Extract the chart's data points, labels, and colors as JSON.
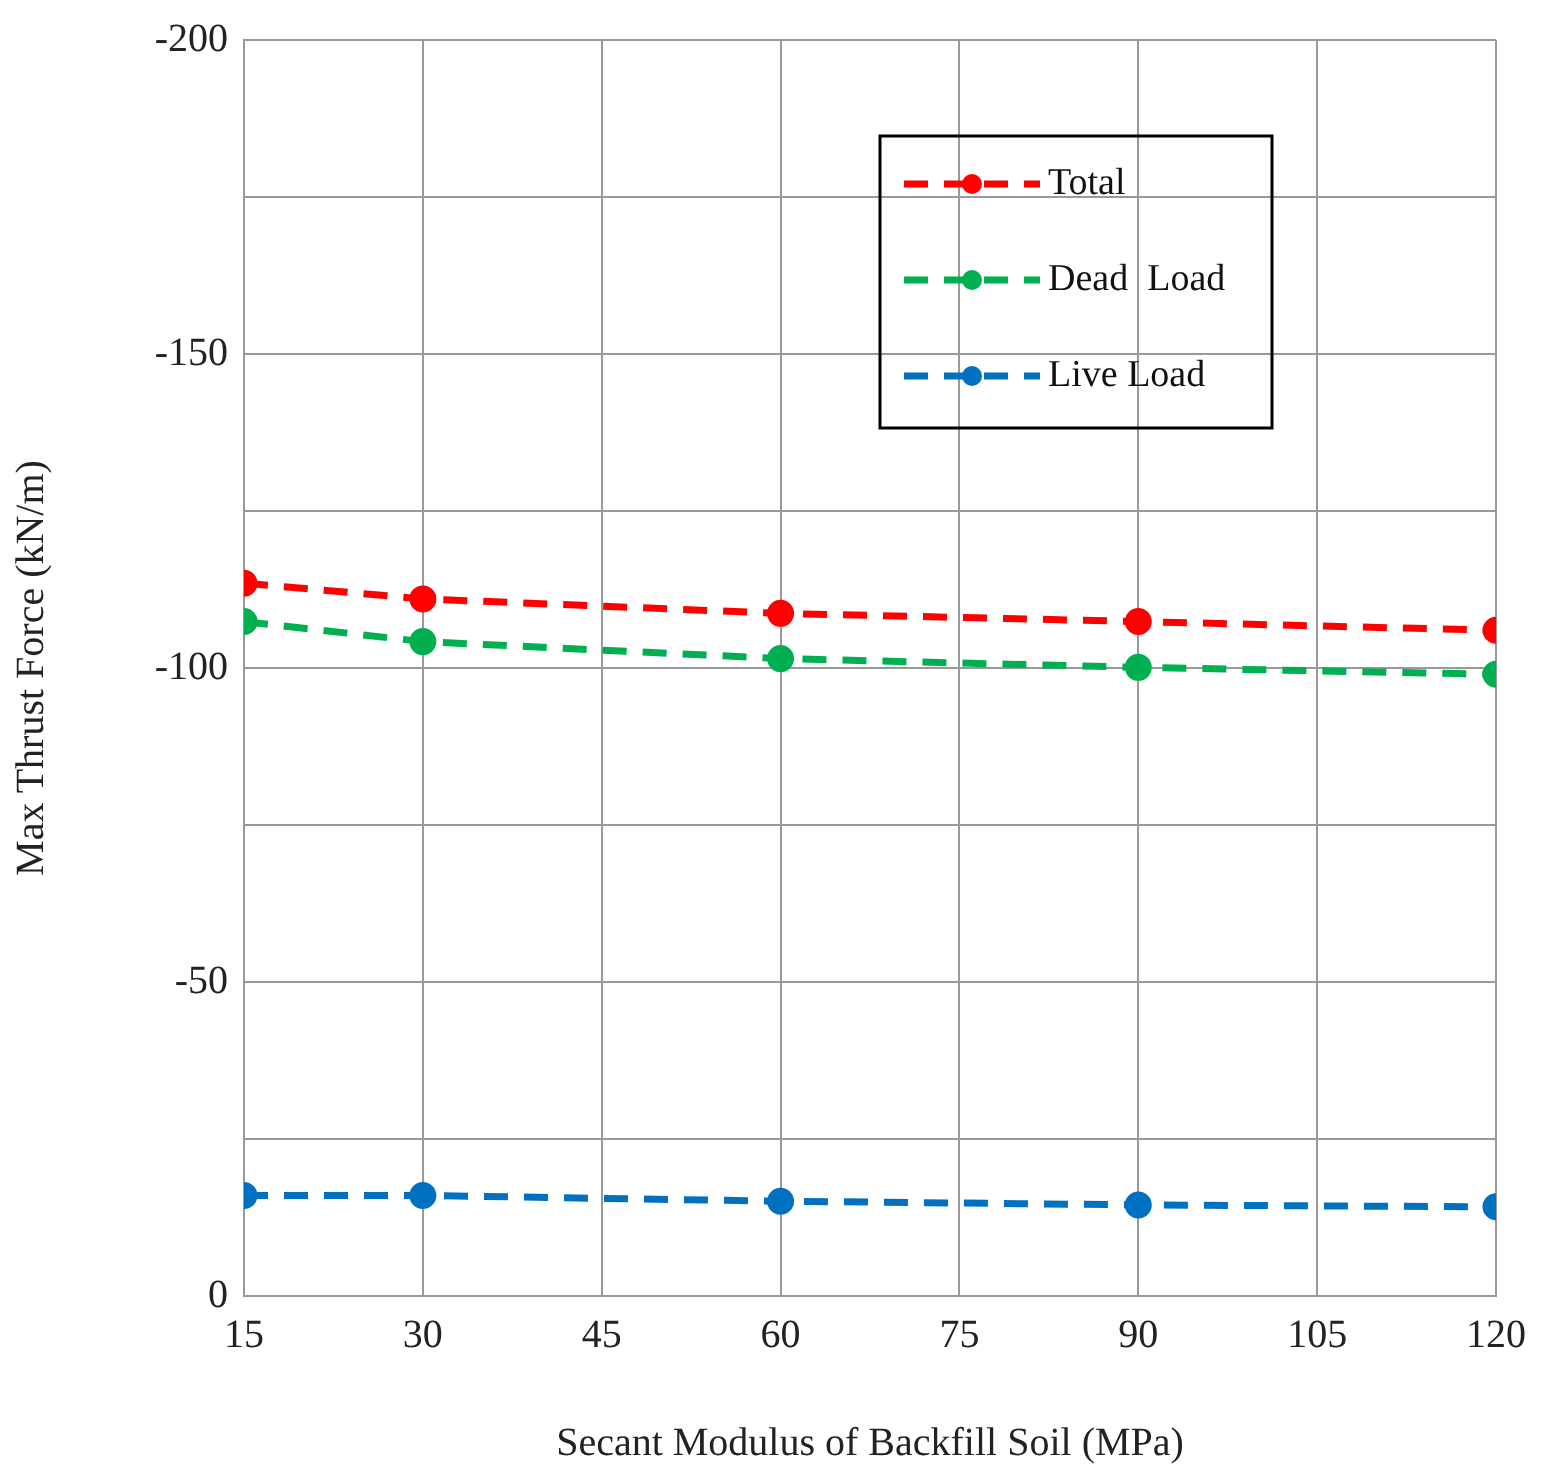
{
  "chart_data": {
    "type": "line",
    "xlabel": "Secant Modulus of Backfill Soil (MPa)",
    "ylabel": "Max Thrust Force (kN/m)",
    "x": [
      15,
      30,
      60,
      90,
      120
    ],
    "series": [
      {
        "name": "Total",
        "color": "#ff0000",
        "values": [
          -113.5,
          -111,
          -108.7,
          -107.4,
          -106
        ]
      },
      {
        "name": "Dead  Load",
        "color": "#00b050",
        "values": [
          -107.4,
          -104.2,
          -101.5,
          -100.1,
          -99
        ]
      },
      {
        "name": "Live Load",
        "color": "#0070c0",
        "values": [
          -16,
          -16,
          -15.1,
          -14.5,
          -14.2
        ]
      }
    ],
    "xlim": [
      15,
      120
    ],
    "xticks": [
      15,
      30,
      45,
      60,
      75,
      90,
      105,
      120
    ],
    "ylim": [
      0,
      -200
    ],
    "yticks": [
      -200,
      {
        "value": -175,
        "label": null
      },
      -150,
      {
        "value": -125,
        "label": null
      },
      -100,
      {
        "value": -75,
        "label": null
      },
      -50,
      {
        "value": -25,
        "label": null
      },
      0
    ],
    "grid": true,
    "legend": "top right",
    "marker": "circle",
    "line_style": "dashed"
  }
}
